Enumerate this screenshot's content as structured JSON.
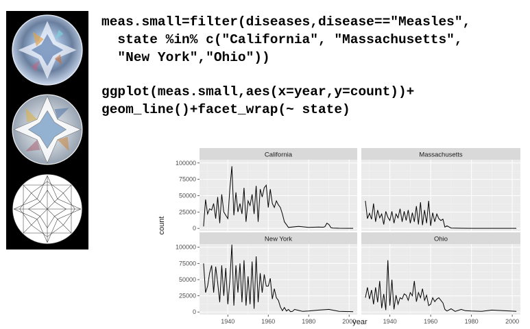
{
  "code": {
    "lines": [
      "meas.small=filter(diseases,disease==\"Measles\",",
      "  state %in% c(\"California\", \"Massachusetts\",",
      "  \"New York\",\"Ohio\"))",
      "ggplot(meas.small,aes(x=year,y=count))+",
      "geom_line()+facet_wrap(~ state)"
    ]
  },
  "images": {
    "icons": [
      "diamond-color-icon",
      "diamond-mosaic-icon",
      "diamond-lineart-icon"
    ]
  },
  "colors": {
    "panel_bg": "#ebebeb",
    "strip_bg": "#d9d9d9",
    "grid_major": "#ffffff",
    "grid_minor": "#f5f5f5",
    "line": "#000000",
    "axis_text": "#4d4d4d",
    "side_strip": "#000000"
  },
  "chart_data": {
    "type": "line",
    "title": "",
    "xlabel": "year",
    "ylabel": "count",
    "xlim": [
      1926,
      2004
    ],
    "ylim": [
      -4000,
      105000
    ],
    "xticks": [
      1940,
      1960,
      1980,
      2000
    ],
    "yticks": [
      0,
      25000,
      50000,
      75000,
      100000
    ],
    "ytick_labels": [
      "0",
      "25000",
      "50000",
      "75000",
      "100000"
    ],
    "layout": "2x2 facet grid",
    "facets": [
      {
        "name": "California",
        "x": [
          1928,
          1929,
          1930,
          1931,
          1932,
          1933,
          1934,
          1935,
          1936,
          1937,
          1938,
          1939,
          1940,
          1941,
          1942,
          1943,
          1944,
          1945,
          1946,
          1947,
          1948,
          1949,
          1950,
          1951,
          1952,
          1953,
          1954,
          1955,
          1956,
          1957,
          1958,
          1959,
          1960,
          1961,
          1962,
          1963,
          1964,
          1965,
          1966,
          1967,
          1968,
          1970,
          1975,
          1980,
          1985,
          1987,
          1988,
          1989,
          1990,
          1991,
          1992,
          1995,
          2000,
          2002
        ],
        "values": [
          3000,
          44000,
          22000,
          30000,
          28000,
          38000,
          15000,
          48000,
          8000,
          52000,
          25000,
          20000,
          15000,
          60000,
          95000,
          20000,
          55000,
          25000,
          38000,
          22000,
          62000,
          10000,
          42000,
          35000,
          52000,
          22000,
          65000,
          10000,
          60000,
          48000,
          62000,
          66000,
          32000,
          60000,
          38000,
          32000,
          42000,
          36000,
          32000,
          22000,
          10000,
          1500,
          3000,
          1500,
          2000,
          1800,
          2500,
          8000,
          6000,
          1000,
          500,
          200,
          100,
          100
        ]
      },
      {
        "name": "Massachusetts",
        "x": [
          1928,
          1929,
          1930,
          1931,
          1932,
          1933,
          1934,
          1935,
          1936,
          1937,
          1938,
          1939,
          1940,
          1941,
          1942,
          1943,
          1944,
          1945,
          1946,
          1947,
          1948,
          1949,
          1950,
          1951,
          1952,
          1953,
          1954,
          1955,
          1956,
          1957,
          1958,
          1959,
          1960,
          1961,
          1962,
          1963,
          1964,
          1965,
          1966,
          1967,
          1968,
          1970,
          1975,
          1980,
          1990,
          2002
        ],
        "values": [
          42000,
          15000,
          23000,
          14000,
          38000,
          10000,
          28000,
          16000,
          22000,
          6000,
          26000,
          17000,
          12000,
          26000,
          8000,
          22000,
          16000,
          30000,
          10000,
          26000,
          12000,
          28000,
          8000,
          24000,
          10000,
          34000,
          6000,
          40000,
          5000,
          28000,
          8000,
          42000,
          4000,
          24000,
          10000,
          22000,
          15000,
          12000,
          14000,
          2000,
          4000,
          500,
          200,
          100,
          100,
          100
        ]
      },
      {
        "name": "New York",
        "x": [
          1928,
          1929,
          1930,
          1931,
          1932,
          1933,
          1934,
          1935,
          1936,
          1937,
          1938,
          1939,
          1940,
          1941,
          1942,
          1943,
          1944,
          1945,
          1946,
          1947,
          1948,
          1949,
          1950,
          1951,
          1952,
          1953,
          1954,
          1955,
          1956,
          1957,
          1958,
          1959,
          1960,
          1961,
          1962,
          1963,
          1964,
          1965,
          1966,
          1967,
          1968,
          1969,
          1970,
          1971,
          1972,
          1973,
          1975,
          1977,
          1980,
          1985,
          1990,
          1995,
          2002
        ],
        "values": [
          75000,
          30000,
          40000,
          60000,
          72000,
          30000,
          70000,
          45000,
          15000,
          72000,
          25000,
          68000,
          12000,
          48000,
          104000,
          10000,
          72000,
          30000,
          75000,
          15000,
          80000,
          10000,
          55000,
          12000,
          78000,
          5000,
          86000,
          15000,
          60000,
          30000,
          58000,
          40000,
          40000,
          52000,
          20000,
          36000,
          22000,
          18000,
          8000,
          2000,
          7000,
          1500,
          4000,
          500,
          1000,
          4000,
          2500,
          1000,
          1500,
          3000,
          4000,
          1000,
          500
        ]
      },
      {
        "name": "Ohio",
        "x": [
          1928,
          1929,
          1930,
          1931,
          1932,
          1933,
          1934,
          1935,
          1936,
          1937,
          1938,
          1939,
          1940,
          1941,
          1942,
          1943,
          1944,
          1945,
          1946,
          1947,
          1948,
          1949,
          1950,
          1951,
          1952,
          1953,
          1954,
          1955,
          1956,
          1957,
          1958,
          1959,
          1960,
          1961,
          1962,
          1963,
          1964,
          1965,
          1966,
          1967,
          1968,
          1970,
          1972,
          1975,
          1977,
          1980,
          1985,
          1990,
          2002
        ],
        "values": [
          22000,
          38000,
          20000,
          34000,
          12000,
          38000,
          15000,
          48000,
          6000,
          28000,
          3000,
          80000,
          10000,
          50000,
          4000,
          26000,
          12000,
          22000,
          20000,
          28000,
          26000,
          18000,
          30000,
          25000,
          48000,
          16000,
          30000,
          22000,
          36000,
          18000,
          26000,
          10000,
          12000,
          22000,
          16000,
          20000,
          22000,
          18000,
          14000,
          4000,
          1500,
          5000,
          1000,
          4000,
          2000,
          1500,
          1000,
          3000,
          1000
        ]
      }
    ]
  }
}
